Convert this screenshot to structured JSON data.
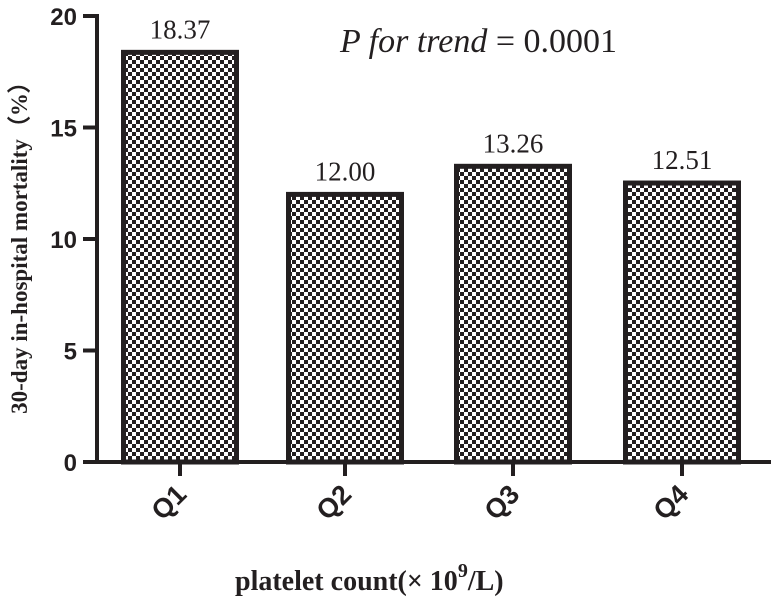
{
  "chart_data": {
    "type": "bar",
    "categories": [
      "Q1",
      "Q2",
      "Q3",
      "Q4"
    ],
    "values": [
      18.37,
      12.0,
      13.26,
      12.51
    ],
    "data_labels": [
      "18.37",
      "12.00",
      "13.26",
      "12.51"
    ],
    "ylabel": "30-day in-hospital mortality（%）",
    "xlabel_main": "platelet count(× 10",
    "xlabel_sup": "9",
    "xlabel_tail": "/L)",
    "ylim": [
      0,
      20
    ],
    "yticks": [
      0,
      5,
      10,
      15,
      20
    ],
    "annotation": {
      "italic": "P for trend",
      "text": " = 0.0001"
    },
    "bar_fill": "checkered",
    "colors": {
      "ink": "#231f20",
      "background": "#ffffff"
    },
    "grid": false,
    "legend": "none"
  }
}
